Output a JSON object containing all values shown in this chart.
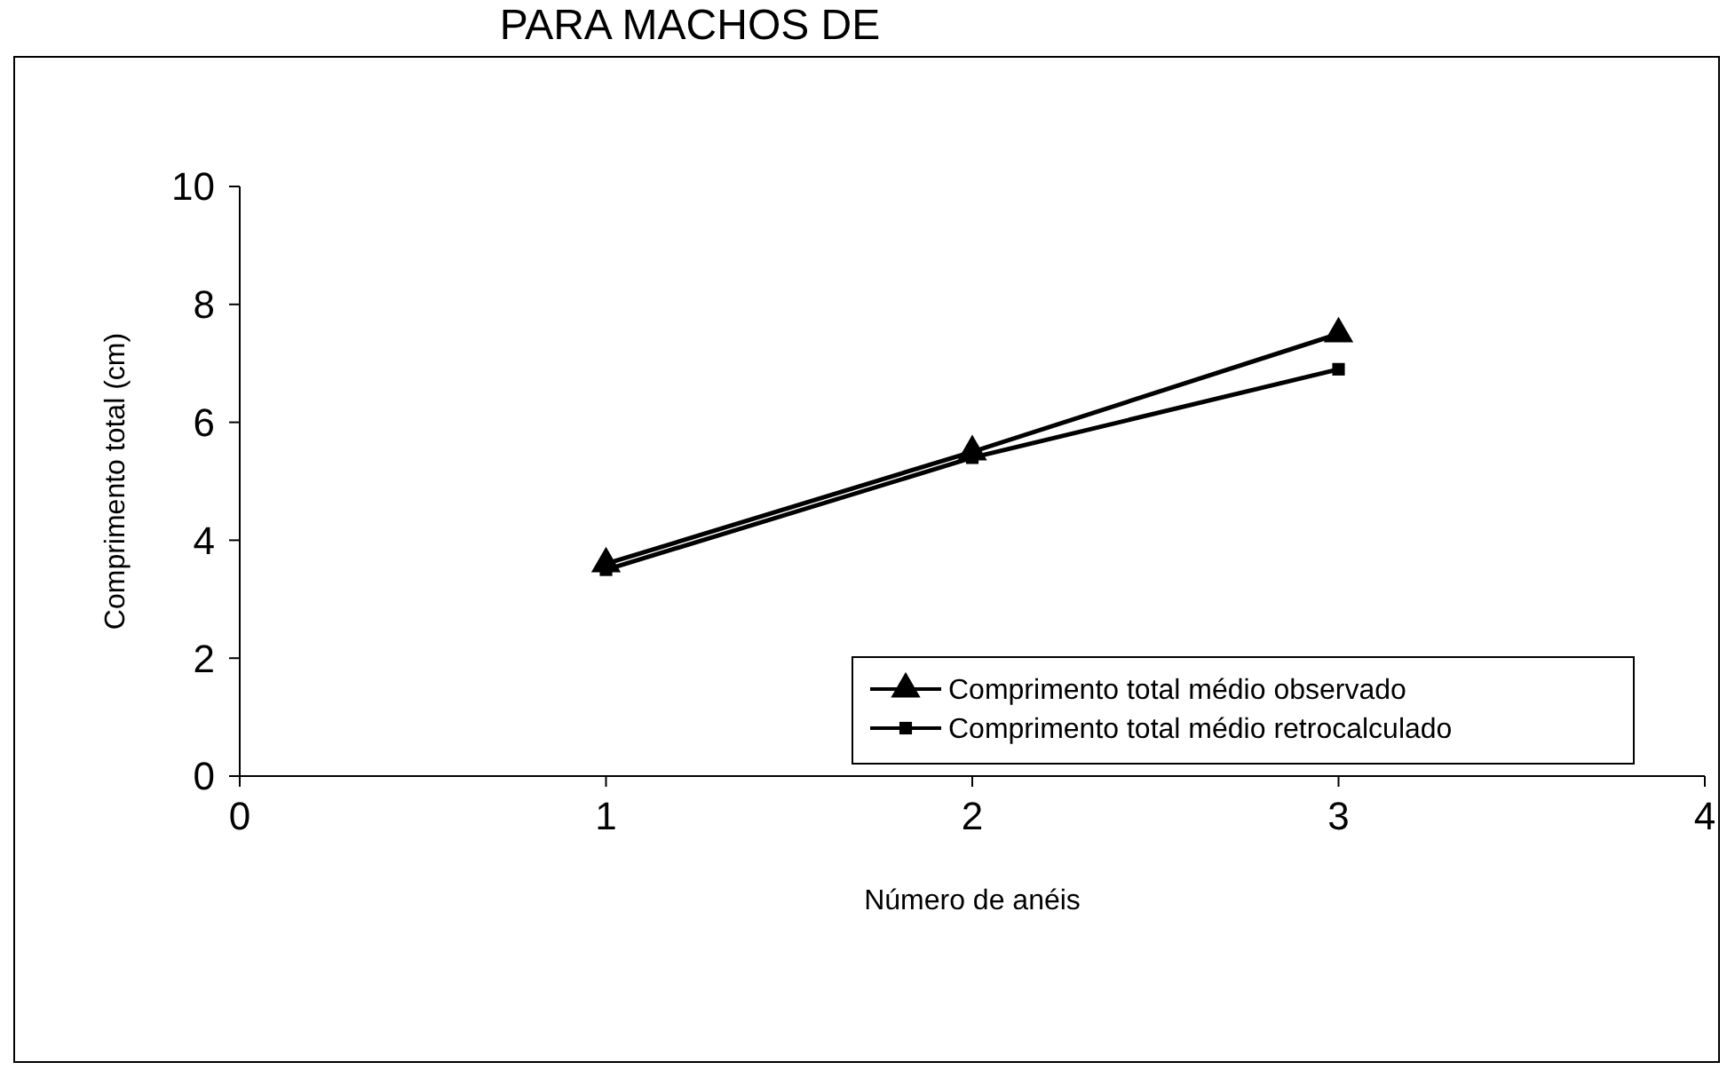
{
  "chart_data": {
    "type": "line",
    "title": "PARA MACHOS DE",
    "xlabel": "Número de anéis",
    "ylabel": "Comprimento total (cm)",
    "x": [
      1,
      2,
      3
    ],
    "series": [
      {
        "name": "Comprimento total médio observado",
        "color": "#000000",
        "marker": "triangle",
        "values": [
          3.6,
          5.5,
          7.5
        ]
      },
      {
        "name": "Comprimento total médio retrocalculado",
        "color": "#000000",
        "marker": "square",
        "values": [
          3.5,
          5.4,
          6.9
        ]
      }
    ],
    "xlim": [
      0,
      4
    ],
    "xticks": [
      0,
      1,
      2,
      3,
      4
    ],
    "ylim": [
      0,
      10
    ],
    "yticks": [
      0,
      2,
      4,
      6,
      8,
      10
    ],
    "grid": false,
    "legend": "bottom right",
    "line_style": "solid"
  }
}
